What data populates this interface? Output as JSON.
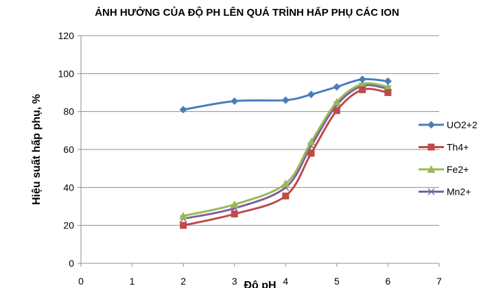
{
  "chart_data": {
    "type": "line",
    "title": "ẢNH HƯỞNG CỦA ĐỘ PH LÊN QUÁ TRÌNH HẤP PHỤ CÁC ION",
    "xlabel": "Độ pH",
    "ylabel": "Hiệu suất hấp phụ, %",
    "xlim": [
      0,
      7
    ],
    "ylim": [
      0,
      120
    ],
    "x_ticks": [
      "0",
      "1",
      "2",
      "3",
      "4",
      "5",
      "6",
      "7"
    ],
    "y_ticks": [
      "0",
      "20",
      "40",
      "60",
      "80",
      "100",
      "120"
    ],
    "grid": "horizontal major",
    "legend_position": "right",
    "series": [
      {
        "name": "UO2+2",
        "color": "#4a7ebb",
        "marker": "diamond",
        "x": [
          2,
          3,
          4,
          4.5,
          5,
          5.5,
          6
        ],
        "y": [
          81,
          85.5,
          86,
          89,
          93,
          97,
          96
        ]
      },
      {
        "name": "Th4+",
        "color": "#be4b48",
        "marker": "square",
        "x": [
          2,
          3,
          4,
          4.5,
          5,
          5.5,
          6
        ],
        "y": [
          20,
          26,
          35.5,
          58,
          80.5,
          91.5,
          90
        ]
      },
      {
        "name": "Fe2+",
        "color": "#98b954",
        "marker": "triangle",
        "x": [
          2,
          3,
          4,
          4.5,
          5,
          5.5,
          6
        ],
        "y": [
          25,
          31,
          42,
          64,
          85,
          94.5,
          93
        ]
      },
      {
        "name": "Mn2+",
        "color": "#7d60a0",
        "marker": "x",
        "x": [
          2,
          3,
          4,
          4.5,
          5,
          5.5,
          6
        ],
        "y": [
          23.5,
          29,
          40,
          62,
          83.5,
          93.5,
          92
        ]
      }
    ]
  }
}
